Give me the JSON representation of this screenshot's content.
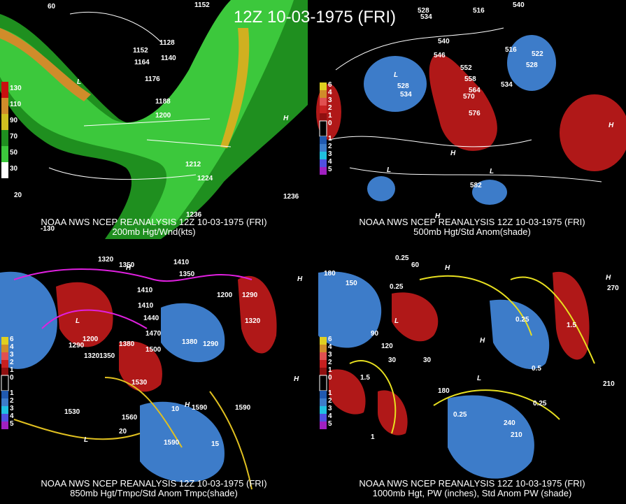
{
  "title": "12Z 10-03-1975 (FRI)",
  "panels": [
    {
      "source": "NOAA NWS NCEP REANALYSIS 12Z 10-03-1975 (FRI)",
      "caption": "200mb Hgt/Wnd(kts)",
      "legend": [
        "130",
        "110",
        "90",
        "70",
        "50",
        "30"
      ],
      "labels": [
        "1152",
        "1128",
        "1152",
        "1164",
        "1140",
        "1176",
        "1188",
        "1200",
        "1212",
        "1224",
        "1236",
        "1236",
        "L",
        "H",
        "60",
        "20",
        "-130"
      ]
    },
    {
      "source": "NOAA NWS NCEP REANALYSIS 12Z 10-03-1975 (FRI)",
      "caption": "500mb Hgt/Std Anom(shade)",
      "legend": [
        "6",
        "4",
        "3",
        "2",
        "1",
        "0",
        "1",
        "2",
        "3",
        "4",
        "5"
      ],
      "labels": [
        "528",
        "534",
        "516",
        "540",
        "540",
        "546",
        "552",
        "558",
        "564",
        "570",
        "576",
        "534",
        "528",
        "522",
        "516",
        "528",
        "534",
        "582",
        "L",
        "L",
        "L",
        "H",
        "H",
        "H"
      ]
    },
    {
      "source": "NOAA NWS NCEP REANALYSIS 12Z 10-03-1975 (FRI)",
      "caption": "850mb Hgt/Tmpc/Std Anom Tmpc(shade)",
      "legend": [
        "6",
        "4",
        "3",
        "2",
        "1",
        "0",
        "1",
        "2",
        "3",
        "4",
        "5"
      ],
      "labels": [
        "1320",
        "1350",
        "1410",
        "1350",
        "1410",
        "1410",
        "1440",
        "1470",
        "1500",
        "1380",
        "1320",
        "1350",
        "1290",
        "1200",
        "1530",
        "1560",
        "1530",
        "1590",
        "1590",
        "1590",
        "1380",
        "1290",
        "1320",
        "1200",
        "1290",
        "10",
        "15",
        "20",
        "L",
        "L",
        "H",
        "H",
        "H",
        "H"
      ]
    },
    {
      "source": "NOAA NWS NCEP REANALYSIS 12Z 10-03-1975 (FRI)",
      "caption": "1000mb Hgt, PW (inches), Std Anom PW (shade)",
      "legend": [
        "6",
        "4",
        "3",
        "2",
        "1",
        "0",
        "1",
        "2",
        "3",
        "4",
        "5"
      ],
      "labels": [
        "0.25",
        "60",
        "150",
        "180",
        "90",
        "120",
        "30",
        "30",
        "0.25",
        "0.25",
        "0.25",
        "0.25",
        "1.5",
        "1.5",
        "1",
        "0.5",
        "240",
        "210",
        "210",
        "180",
        "270",
        "L",
        "L",
        "H",
        "H",
        "H"
      ]
    }
  ]
}
